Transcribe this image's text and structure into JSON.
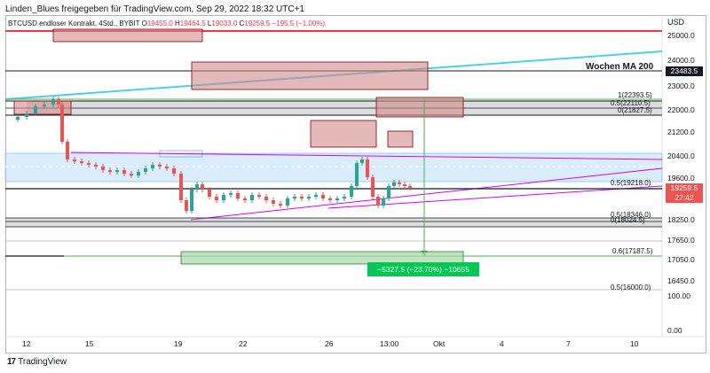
{
  "header": "Linden_Blues freigegeben für TradingView.com, Sep 29, 2022 18:32 UTC+1",
  "symbol": {
    "name": "BTCUSD endloser Kontrakt, 4Std., BYBIT",
    "o_label": "O",
    "o": "19455.0",
    "h_label": "H",
    "h": "19464.5",
    "l_label": "L",
    "l": "19033.0",
    "c_label": "C",
    "c": "19259.5",
    "change": "−195.5 (−1.00%)"
  },
  "currency": "USD",
  "price_axis": [
    "25000.0",
    "24000.0",
    "23000.0",
    "22000.0",
    "21200.0",
    "20400.0",
    "19600.0",
    "18250.0",
    "17650.0",
    "17050.0",
    "16450.0",
    "100.00",
    "0.00"
  ],
  "time_axis": [
    "12",
    "15",
    "19",
    "22",
    "26",
    "13:00",
    "Okt",
    "4",
    "7",
    "10"
  ],
  "ma_label": "Wochen MA 200",
  "ma_value": "23483.5",
  "current_price": "19259.5",
  "countdown": "27:42",
  "fib_labels": [
    "1(22393.5)",
    "0.5(22110.5)",
    "0(21827.5)",
    "0.5(19218.0)",
    "0.5(18346.0)",
    "0(18024.5)",
    "0.6(17187.5)",
    "0.5(16000.0)"
  ],
  "measure_label": "−5327.5 (−23.70%) −10655",
  "footer": "TradingView",
  "colors": {
    "up": "#26a69a",
    "down": "#ef5350",
    "ma": "#4dd0e1",
    "red_line": "#f23645",
    "green": "#4caf50",
    "magenta": "#d500f9",
    "blue_zone": "#90caf9"
  }
}
